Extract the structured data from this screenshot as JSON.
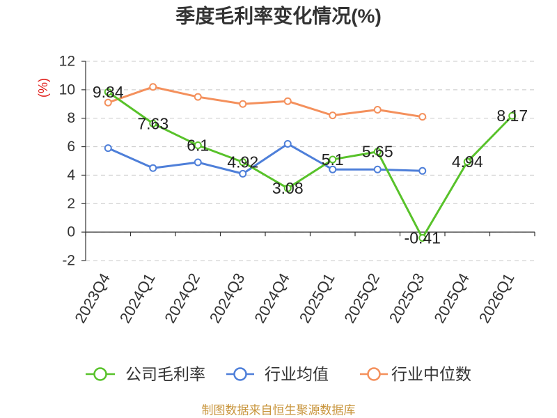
{
  "chart_data": {
    "type": "line",
    "title": "季度毛利率变化情况(%)",
    "xlabel": "",
    "ylabel": "(%)",
    "ylim": [
      -2,
      12
    ],
    "yticks": [
      12,
      10,
      8,
      6,
      4,
      2,
      0,
      -2
    ],
    "grid": true,
    "legend_position": "bottom",
    "categories": [
      "2023Q4",
      "2024Q1",
      "2024Q2",
      "2024Q3",
      "2024Q4",
      "2025Q1",
      "2025Q2",
      "2025Q3",
      "2025Q4",
      "2026Q1"
    ],
    "series": [
      {
        "name": "公司毛利率",
        "color": "#58c22a",
        "data_labels": true,
        "values": [
          9.84,
          7.63,
          6.1,
          4.92,
          3.08,
          5.1,
          5.65,
          -0.41,
          4.94,
          8.17
        ]
      },
      {
        "name": "行业均值",
        "color": "#4e7fd9",
        "data_labels": false,
        "values": [
          5.9,
          4.5,
          4.9,
          4.1,
          6.2,
          4.4,
          4.4,
          4.3,
          null,
          null
        ]
      },
      {
        "name": "行业中位数",
        "color": "#f4905c",
        "data_labels": false,
        "values": [
          9.1,
          10.2,
          9.5,
          9.0,
          9.2,
          8.2,
          8.6,
          8.1,
          null,
          null
        ]
      }
    ]
  },
  "footer": "制图数据来自恒生聚源数据库",
  "colors": {
    "ylabel": "#e0201c",
    "footer": "#c9963e"
  }
}
